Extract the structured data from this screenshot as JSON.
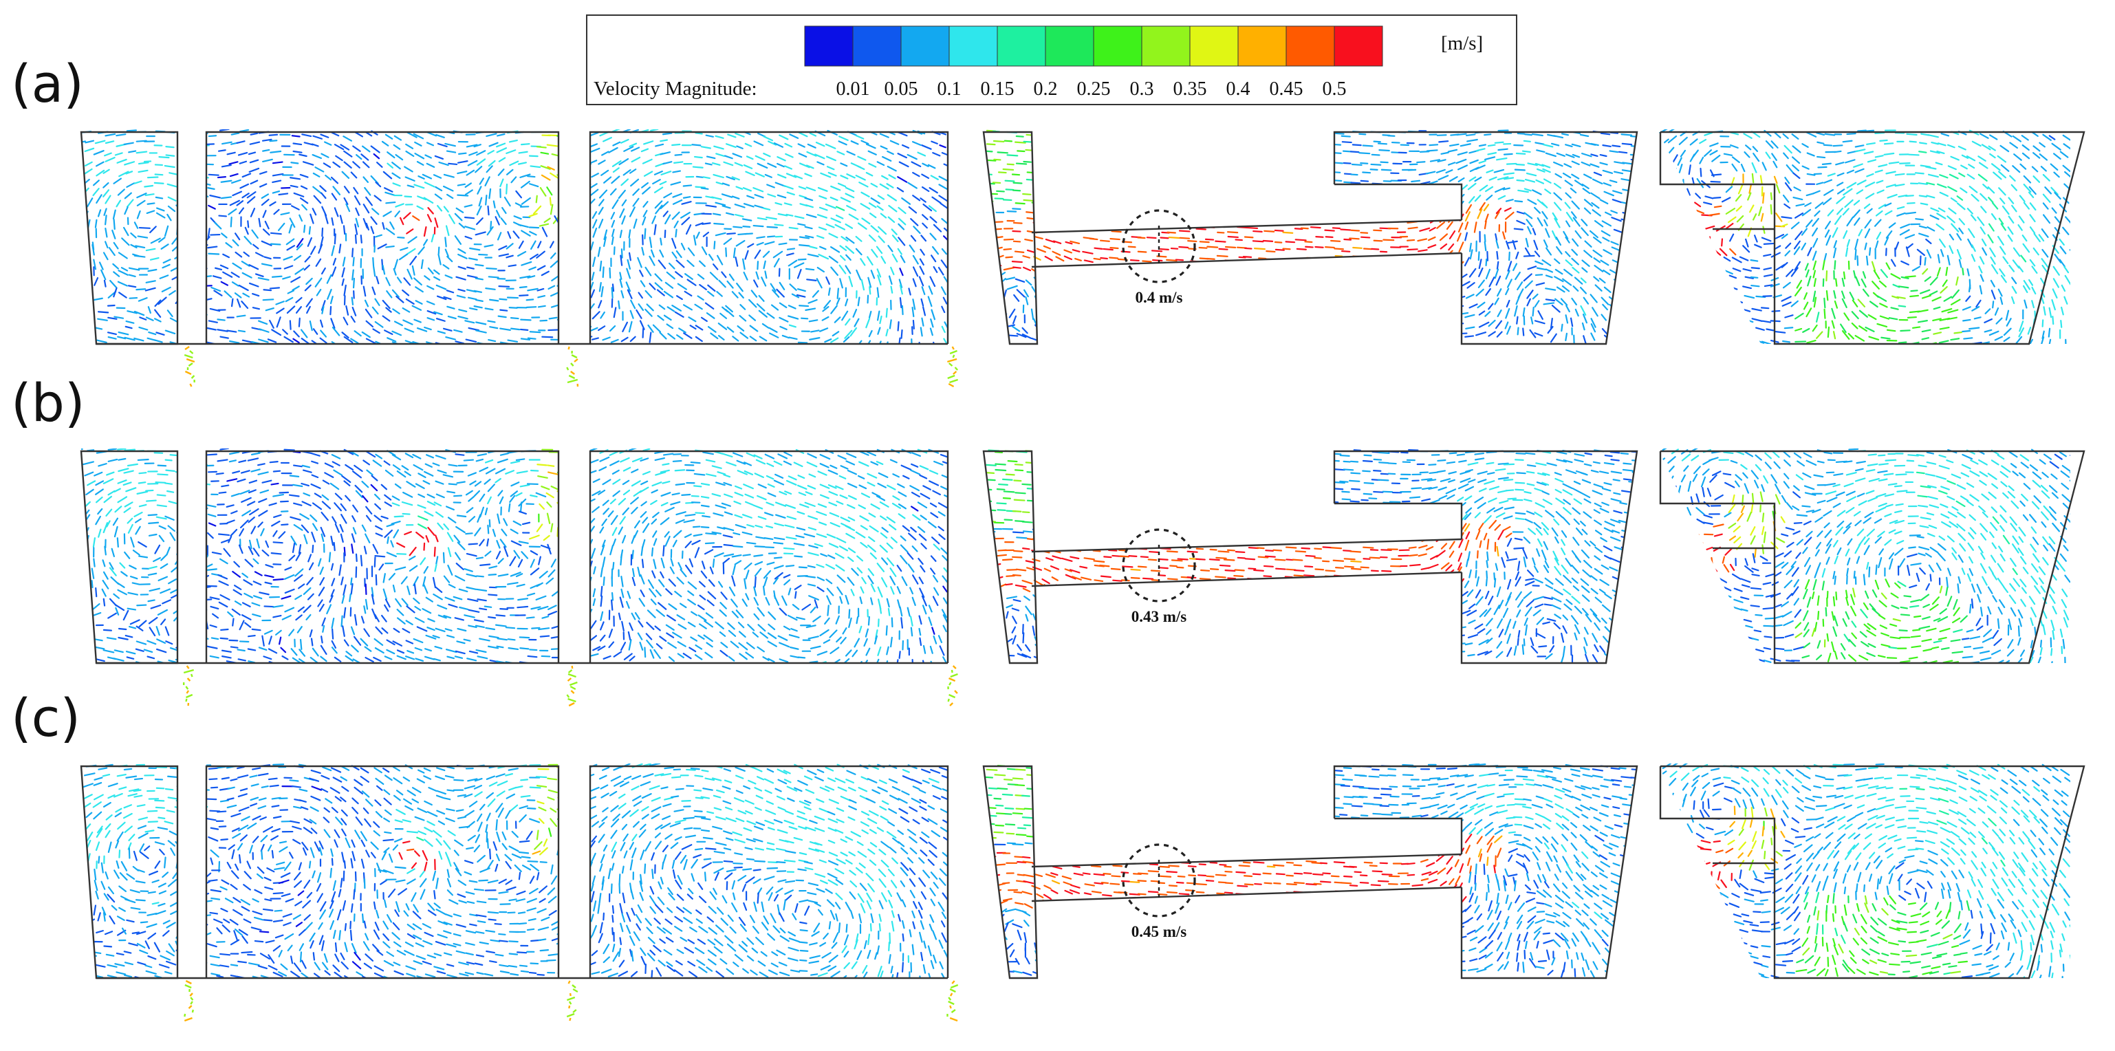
{
  "colorbar": {
    "title": "Velocity Magnitude:",
    "unit": "[m/s]",
    "ticks": [
      "0.01",
      "0.05",
      "0.1",
      "0.15",
      "0.2",
      "0.25",
      "0.3",
      "0.35",
      "0.4",
      "0.45",
      "0.5"
    ],
    "colors": [
      "#0a10e6",
      "#0f58ee",
      "#13a8f0",
      "#2fe6ec",
      "#1ef0a0",
      "#1ee85a",
      "#3ef21a",
      "#92f41c",
      "#e0f614",
      "#ffb000",
      "#ff5a00",
      "#f8101e"
    ]
  },
  "rows": [
    {
      "label": "(a)",
      "velocity_annotation": "0.4 m/s"
    },
    {
      "label": "(b)",
      "velocity_annotation": "0.43 m/s"
    },
    {
      "label": "(c)",
      "velocity_annotation": "0.45 m/s"
    }
  ]
}
